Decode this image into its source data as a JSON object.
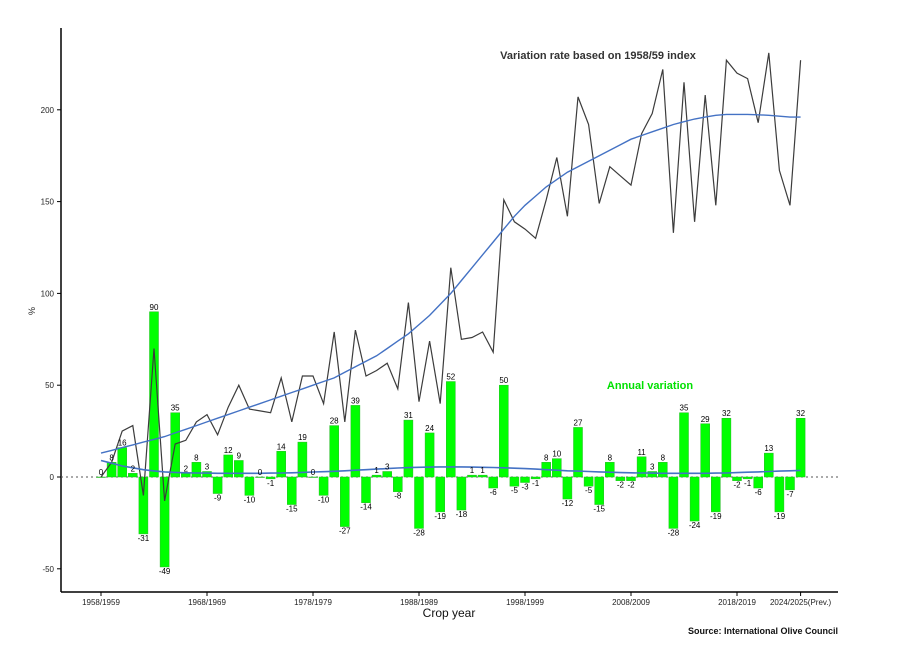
{
  "chart_data": {
    "type": "bar",
    "ylabel": "%",
    "xlabel": "Crop year",
    "ylim": [
      -60,
      245
    ],
    "yticks": [
      -50,
      0,
      50,
      100,
      150,
      200
    ],
    "x_tick_labels": [
      "1958/1959",
      "1968/1969",
      "1978/1979",
      "1988/1989",
      "1998/1999",
      "2008/2009",
      "2018/2019",
      "2024/2025(Prev.)"
    ],
    "x_tick_indices": [
      0,
      10,
      20,
      30,
      40,
      50,
      60,
      66
    ],
    "grid": false,
    "source": "Source: International Olive Council",
    "colors": {
      "bars": "#00ff00",
      "bar_edge": "#22bb22",
      "index_line": "#3c3c3c",
      "trend_line": "#4472c4",
      "annual_label": "#00e000",
      "zero_line": "#555555"
    },
    "series": [
      {
        "name": "Annual variation",
        "values": [
          0,
          8,
          16,
          2,
          -31,
          90,
          -49,
          35,
          2,
          8,
          3,
          -9,
          12,
          9,
          -10,
          0,
          -1,
          14,
          -15,
          19,
          0,
          -10,
          28,
          -27,
          39,
          -14,
          1,
          3,
          -8,
          31,
          -28,
          24,
          -19,
          52,
          -18,
          1,
          1,
          -6,
          50,
          -5,
          -3,
          -1,
          8,
          10,
          -12,
          27,
          -5,
          -15,
          8,
          -2,
          -2,
          11,
          3,
          8,
          -28,
          35,
          -24,
          29,
          -19,
          32,
          -2,
          -1,
          -6,
          13,
          -19,
          -7,
          32
        ]
      },
      {
        "name": "Variation rate based on 1958/59 index",
        "values": [
          0,
          8,
          25,
          28,
          -10,
          70,
          -13,
          18,
          20,
          30,
          34,
          23,
          38,
          50,
          37,
          36,
          35,
          54,
          30,
          55,
          55,
          40,
          79,
          30,
          80,
          55,
          58,
          62,
          48,
          95,
          41,
          74,
          40,
          114,
          75,
          76,
          79,
          68,
          151,
          139,
          135,
          130,
          151,
          174,
          142,
          207,
          192,
          149,
          169,
          164,
          159,
          187,
          198,
          222,
          133,
          215,
          139,
          208,
          148,
          227,
          220,
          217,
          193,
          231,
          167,
          148,
          227
        ]
      }
    ],
    "trend_index": [
      13,
      14.5,
      16,
      17.5,
      19,
      20.5,
      22,
      24,
      26,
      28,
      30,
      32,
      34,
      36,
      38,
      40,
      42,
      44,
      46,
      48,
      50,
      52,
      54,
      57,
      60,
      63,
      66,
      70,
      74,
      78,
      83,
      88,
      94,
      100,
      107,
      114,
      121,
      128,
      135,
      142,
      148,
      153,
      158,
      162,
      166,
      169,
      172,
      175,
      178,
      181,
      184,
      186,
      188,
      190,
      192,
      193.5,
      195,
      196,
      197,
      197.5,
      197.5,
      197.5,
      197.3,
      197,
      196.5,
      196,
      196
    ],
    "trend_annual": [
      9,
      7.5,
      6,
      5,
      4,
      3.3,
      2.8,
      2.5,
      2.3,
      2.2,
      2.1,
      2.0,
      2.0,
      2.0,
      2.0,
      2.0,
      2.1,
      2.2,
      2.3,
      2.5,
      2.7,
      2.9,
      3.1,
      3.4,
      3.7,
      4.0,
      4.3,
      4.6,
      4.9,
      5.1,
      5.3,
      5.4,
      5.5,
      5.5,
      5.5,
      5.4,
      5.3,
      5.2,
      5.0,
      4.8,
      4.6,
      4.3,
      4.0,
      3.7,
      3.4,
      3.2,
      3.0,
      2.8,
      2.6,
      2.4,
      2.3,
      2.2,
      2.1,
      2.0,
      2.0,
      2.0,
      2.0,
      2.0,
      2.1,
      2.2,
      2.4,
      2.6,
      2.8,
      3.0,
      3.2,
      3.4,
      3.6
    ]
  }
}
